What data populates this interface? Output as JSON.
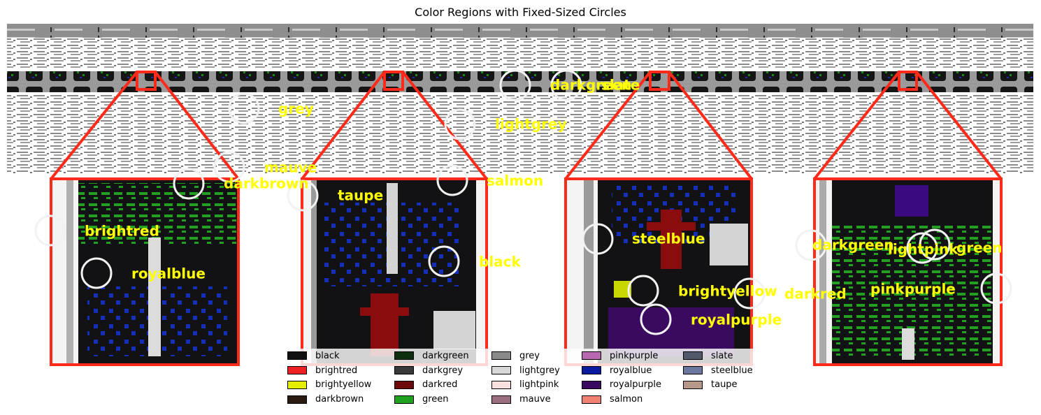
{
  "title": "Color Regions with Fixed-Sized Circles",
  "annotations": [
    {
      "label": "grey"
    },
    {
      "label": "lightgrey"
    },
    {
      "label": "darkgreen"
    },
    {
      "label": "slate"
    },
    {
      "label": "mauve"
    },
    {
      "label": "darkbrown"
    },
    {
      "label": "salmon"
    },
    {
      "label": "taupe"
    },
    {
      "label": "brightred"
    },
    {
      "label": "royalblue"
    },
    {
      "label": "black"
    },
    {
      "label": "steelblue"
    },
    {
      "label": "brightyellow"
    },
    {
      "label": "darkred"
    },
    {
      "label": "royalpurple"
    },
    {
      "label": "darkgreen"
    },
    {
      "label": "lightpink"
    },
    {
      "label": "green"
    },
    {
      "label": "pinkpurple"
    }
  ],
  "legend": [
    {
      "label": "black",
      "color": "#111111"
    },
    {
      "label": "brightred",
      "color": "#ee2222"
    },
    {
      "label": "brightyellow",
      "color": "#e3ee00"
    },
    {
      "label": "darkbrown",
      "color": "#2b1a10"
    },
    {
      "label": "darkgreen",
      "color": "#0d2f0d"
    },
    {
      "label": "darkgrey",
      "color": "#3a3a3a"
    },
    {
      "label": "darkred",
      "color": "#6e0a0a"
    },
    {
      "label": "green",
      "color": "#22a022"
    },
    {
      "label": "grey",
      "color": "#8a8a8a"
    },
    {
      "label": "lightgrey",
      "color": "#d8d8d8"
    },
    {
      "label": "lightpink",
      "color": "#fbe0e0"
    },
    {
      "label": "mauve",
      "color": "#9a7080"
    },
    {
      "label": "pinkpurple",
      "color": "#b868b0"
    },
    {
      "label": "royalblue",
      "color": "#0a1aa0"
    },
    {
      "label": "royalpurple",
      "color": "#3a0a60"
    },
    {
      "label": "salmon",
      "color": "#f08070"
    },
    {
      "label": "slate",
      "color": "#505a6a"
    },
    {
      "label": "steelblue",
      "color": "#6a78a0"
    },
    {
      "label": "taupe",
      "color": "#b89888"
    }
  ],
  "colors": {
    "annotation_text": "#ffff00",
    "callout": "#ff2a1a",
    "circle": "#f2f2f2"
  }
}
